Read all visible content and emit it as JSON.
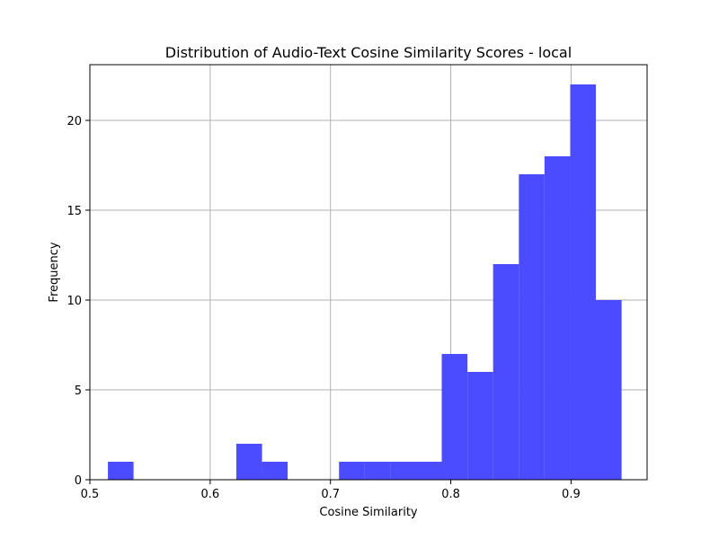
{
  "chart_data": {
    "type": "bar",
    "title": "Distribution of Audio-Text Cosine Similarity Scores - local",
    "xlabel": "Cosine Similarity",
    "ylabel": "Frequency",
    "bar_color": "#4b4bff",
    "grid": true,
    "xlim": [
      0.5,
      0.9632
    ],
    "ylim": [
      0,
      23.1
    ],
    "x_ticks": [
      0.5,
      0.6,
      0.7,
      0.8,
      0.9
    ],
    "x_tick_labels": [
      "0.5",
      "0.6",
      "0.7",
      "0.8",
      "0.9"
    ],
    "y_ticks": [
      0,
      5,
      10,
      15,
      20
    ],
    "y_tick_labels": [
      "0",
      "5",
      "10",
      "15",
      "20"
    ],
    "bins": [
      {
        "x0": 0.515,
        "x1": 0.5363,
        "count": 1
      },
      {
        "x0": 0.5363,
        "x1": 0.5577,
        "count": 0
      },
      {
        "x0": 0.5577,
        "x1": 0.579,
        "count": 0
      },
      {
        "x0": 0.579,
        "x1": 0.6004,
        "count": 0
      },
      {
        "x0": 0.6004,
        "x1": 0.6217,
        "count": 0
      },
      {
        "x0": 0.6217,
        "x1": 0.6431,
        "count": 2
      },
      {
        "x0": 0.6431,
        "x1": 0.6644,
        "count": 1
      },
      {
        "x0": 0.6644,
        "x1": 0.6858,
        "count": 0
      },
      {
        "x0": 0.6858,
        "x1": 0.7071,
        "count": 0
      },
      {
        "x0": 0.7071,
        "x1": 0.7285,
        "count": 1
      },
      {
        "x0": 0.7285,
        "x1": 0.7498,
        "count": 1
      },
      {
        "x0": 0.7498,
        "x1": 0.7712,
        "count": 1
      },
      {
        "x0": 0.7712,
        "x1": 0.7925,
        "count": 1
      },
      {
        "x0": 0.7925,
        "x1": 0.8139,
        "count": 7
      },
      {
        "x0": 0.8139,
        "x1": 0.8352,
        "count": 6
      },
      {
        "x0": 0.8352,
        "x1": 0.8566,
        "count": 12
      },
      {
        "x0": 0.8566,
        "x1": 0.8779,
        "count": 17
      },
      {
        "x0": 0.8779,
        "x1": 0.8993,
        "count": 18
      },
      {
        "x0": 0.8993,
        "x1": 0.9206,
        "count": 22
      },
      {
        "x0": 0.9206,
        "x1": 0.942,
        "count": 10
      }
    ]
  }
}
